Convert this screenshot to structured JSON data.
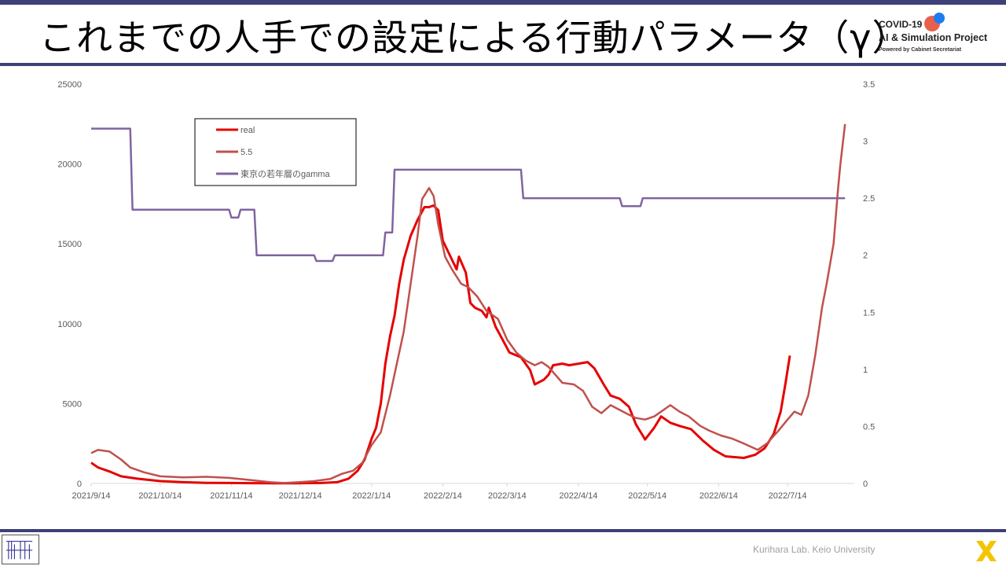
{
  "slide": {
    "title": "これまでの人手での設定による行動パラメータ（γ）",
    "logo": {
      "line1": "COVID-19",
      "line2": "AI & Simulation Project",
      "line3": "Powered by Cabinet Secretariat"
    },
    "footer": "Kurihara Lab. Keio University"
  },
  "colors": {
    "real": "#e60000",
    "model": "#c0504d",
    "gamma": "#8064a2",
    "rule": "#3f3f7a"
  },
  "chart_data": {
    "type": "line",
    "x_ticks": [
      "2021/9/14",
      "2021/10/14",
      "2021/11/14",
      "2021/12/14",
      "2022/1/14",
      "2022/2/14",
      "2022/3/14",
      "2022/4/14",
      "2022/5/14",
      "2022/6/14",
      "2022/7/14"
    ],
    "x_range": [
      "2021-09-14",
      "2022-08-06"
    ],
    "y_left": {
      "range": [
        0,
        25000
      ],
      "ticks": [
        "0",
        "5000",
        "10000",
        "15000",
        "20000",
        "25000"
      ]
    },
    "y_right": {
      "range": [
        0,
        3.5
      ],
      "ticks": [
        "0",
        "0.5",
        "1",
        "1.5",
        "2",
        "2.5",
        "3",
        "3.5"
      ]
    },
    "legend_position": "top-left",
    "series": [
      {
        "name": "real",
        "axis": "left",
        "points": [
          [
            "2021-09-14",
            1300
          ],
          [
            "2021-09-17",
            1000
          ],
          [
            "2021-09-22",
            750
          ],
          [
            "2021-09-27",
            450
          ],
          [
            "2021-10-04",
            300
          ],
          [
            "2021-10-14",
            150
          ],
          [
            "2021-10-24",
            80
          ],
          [
            "2021-11-03",
            40
          ],
          [
            "2021-11-13",
            30
          ],
          [
            "2021-11-23",
            20
          ],
          [
            "2021-12-03",
            15
          ],
          [
            "2021-12-13",
            15
          ],
          [
            "2021-12-23",
            30
          ],
          [
            "2021-12-30",
            80
          ],
          [
            "2022-01-04",
            300
          ],
          [
            "2022-01-08",
            800
          ],
          [
            "2022-01-11",
            1500
          ],
          [
            "2022-01-14",
            2800
          ],
          [
            "2022-01-16",
            3500
          ],
          [
            "2022-01-18",
            5000
          ],
          [
            "2022-01-20",
            7500
          ],
          [
            "2022-01-22",
            9200
          ],
          [
            "2022-01-24",
            10500
          ],
          [
            "2022-01-26",
            12500
          ],
          [
            "2022-01-28",
            14000
          ],
          [
            "2022-01-31",
            15500
          ],
          [
            "2022-02-03",
            16500
          ],
          [
            "2022-02-06",
            17300
          ],
          [
            "2022-02-08",
            17300
          ],
          [
            "2022-02-10",
            17400
          ],
          [
            "2022-02-12",
            17100
          ],
          [
            "2022-02-14",
            15200
          ],
          [
            "2022-02-17",
            14300
          ],
          [
            "2022-02-20",
            13400
          ],
          [
            "2022-02-21",
            14200
          ],
          [
            "2022-02-24",
            13200
          ],
          [
            "2022-02-26",
            11300
          ],
          [
            "2022-02-28",
            11000
          ],
          [
            "2022-03-03",
            10800
          ],
          [
            "2022-03-05",
            10400
          ],
          [
            "2022-03-06",
            11000
          ],
          [
            "2022-03-09",
            9800
          ],
          [
            "2022-03-12",
            9000
          ],
          [
            "2022-03-15",
            8200
          ],
          [
            "2022-03-20",
            7900
          ],
          [
            "2022-03-24",
            7100
          ],
          [
            "2022-03-26",
            6200
          ],
          [
            "2022-03-30",
            6500
          ],
          [
            "2022-04-01",
            6800
          ],
          [
            "2022-04-03",
            7400
          ],
          [
            "2022-04-07",
            7500
          ],
          [
            "2022-04-10",
            7400
          ],
          [
            "2022-04-14",
            7500
          ],
          [
            "2022-04-18",
            7600
          ],
          [
            "2022-04-21",
            7200
          ],
          [
            "2022-04-25",
            6200
          ],
          [
            "2022-04-28",
            5500
          ],
          [
            "2022-05-02",
            5300
          ],
          [
            "2022-05-06",
            4800
          ],
          [
            "2022-05-09",
            3700
          ],
          [
            "2022-05-12",
            3000
          ],
          [
            "2022-05-13",
            2750
          ],
          [
            "2022-05-17",
            3500
          ],
          [
            "2022-05-20",
            4200
          ],
          [
            "2022-05-24",
            3800
          ],
          [
            "2022-05-28",
            3600
          ],
          [
            "2022-06-02",
            3400
          ],
          [
            "2022-06-07",
            2700
          ],
          [
            "2022-06-12",
            2100
          ],
          [
            "2022-06-17",
            1700
          ],
          [
            "2022-06-25",
            1600
          ],
          [
            "2022-06-30",
            1800
          ],
          [
            "2022-07-04",
            2200
          ],
          [
            "2022-07-08",
            3100
          ],
          [
            "2022-07-11",
            4500
          ],
          [
            "2022-07-13",
            6200
          ],
          [
            "2022-07-15",
            8000
          ]
        ]
      },
      {
        "name": "5.5",
        "axis": "left",
        "points": [
          [
            "2021-09-14",
            1900
          ],
          [
            "2021-09-17",
            2100
          ],
          [
            "2021-09-22",
            2000
          ],
          [
            "2021-09-27",
            1500
          ],
          [
            "2021-10-01",
            1000
          ],
          [
            "2021-10-07",
            700
          ],
          [
            "2021-10-14",
            450
          ],
          [
            "2021-10-24",
            380
          ],
          [
            "2021-11-03",
            420
          ],
          [
            "2021-11-13",
            350
          ],
          [
            "2021-11-23",
            200
          ],
          [
            "2021-12-01",
            80
          ],
          [
            "2021-12-07",
            30
          ],
          [
            "2021-12-13",
            80
          ],
          [
            "2021-12-20",
            150
          ],
          [
            "2021-12-27",
            280
          ],
          [
            "2022-01-01",
            600
          ],
          [
            "2022-01-06",
            800
          ],
          [
            "2022-01-10",
            1300
          ],
          [
            "2022-01-14",
            2400
          ],
          [
            "2022-01-18",
            3200
          ],
          [
            "2022-01-22",
            5500
          ],
          [
            "2022-01-25",
            7500
          ],
          [
            "2022-01-28",
            9500
          ],
          [
            "2022-01-31",
            12500
          ],
          [
            "2022-02-03",
            15500
          ],
          [
            "2022-02-05",
            17800
          ],
          [
            "2022-02-08",
            18500
          ],
          [
            "2022-02-10",
            18000
          ],
          [
            "2022-02-12",
            16200
          ],
          [
            "2022-02-15",
            14200
          ],
          [
            "2022-02-18",
            13400
          ],
          [
            "2022-02-22",
            12500
          ],
          [
            "2022-02-25",
            12300
          ],
          [
            "2022-03-01",
            11700
          ],
          [
            "2022-03-05",
            10800
          ],
          [
            "2022-03-10",
            10300
          ],
          [
            "2022-03-14",
            9000
          ],
          [
            "2022-03-18",
            8200
          ],
          [
            "2022-03-22",
            7700
          ],
          [
            "2022-03-26",
            7400
          ],
          [
            "2022-03-29",
            7600
          ],
          [
            "2022-04-01",
            7300
          ],
          [
            "2022-04-04",
            6800
          ],
          [
            "2022-04-07",
            6300
          ],
          [
            "2022-04-12",
            6200
          ],
          [
            "2022-04-16",
            5800
          ],
          [
            "2022-04-20",
            4800
          ],
          [
            "2022-04-24",
            4400
          ],
          [
            "2022-04-28",
            4900
          ],
          [
            "2022-05-02",
            4600
          ],
          [
            "2022-05-06",
            4300
          ],
          [
            "2022-05-09",
            4100
          ],
          [
            "2022-05-13",
            4000
          ],
          [
            "2022-05-17",
            4200
          ],
          [
            "2022-05-21",
            4600
          ],
          [
            "2022-05-24",
            4900
          ],
          [
            "2022-05-28",
            4500
          ],
          [
            "2022-06-01",
            4200
          ],
          [
            "2022-06-06",
            3600
          ],
          [
            "2022-06-10",
            3300
          ],
          [
            "2022-06-15",
            3000
          ],
          [
            "2022-06-20",
            2800
          ],
          [
            "2022-06-25",
            2500
          ],
          [
            "2022-07-01",
            2100
          ],
          [
            "2022-07-05",
            2500
          ],
          [
            "2022-07-10",
            3300
          ],
          [
            "2022-07-14",
            4000
          ],
          [
            "2022-07-17",
            4500
          ],
          [
            "2022-07-20",
            4300
          ],
          [
            "2022-07-23",
            5500
          ],
          [
            "2022-07-26",
            8000
          ],
          [
            "2022-07-29",
            11000
          ],
          [
            "2022-07-31",
            12500
          ],
          [
            "2022-08-03",
            15000
          ],
          [
            "2022-08-05",
            18500
          ],
          [
            "2022-08-06",
            20000
          ],
          [
            "2022-08-08",
            22500
          ]
        ]
      },
      {
        "name": "東京の若年層のgamma",
        "axis": "right",
        "points": [
          [
            "2021-09-14",
            3.11
          ],
          [
            "2021-10-01",
            3.11
          ],
          [
            "2021-10-02",
            2.4
          ],
          [
            "2021-11-13",
            2.4
          ],
          [
            "2021-11-14",
            2.33
          ],
          [
            "2021-11-17",
            2.33
          ],
          [
            "2021-11-18",
            2.4
          ],
          [
            "2021-11-24",
            2.4
          ],
          [
            "2021-11-25",
            2.0
          ],
          [
            "2021-12-20",
            2.0
          ],
          [
            "2021-12-21",
            1.95
          ],
          [
            "2021-12-28",
            1.95
          ],
          [
            "2021-12-29",
            2.0
          ],
          [
            "2022-01-19",
            2.0
          ],
          [
            "2022-01-20",
            2.2
          ],
          [
            "2022-01-23",
            2.2
          ],
          [
            "2022-01-24",
            2.75
          ],
          [
            "2022-03-20",
            2.75
          ],
          [
            "2022-03-21",
            2.5
          ],
          [
            "2022-05-02",
            2.5
          ],
          [
            "2022-05-03",
            2.43
          ],
          [
            "2022-05-11",
            2.43
          ],
          [
            "2022-05-12",
            2.5
          ],
          [
            "2022-08-08",
            2.5
          ]
        ]
      }
    ]
  }
}
